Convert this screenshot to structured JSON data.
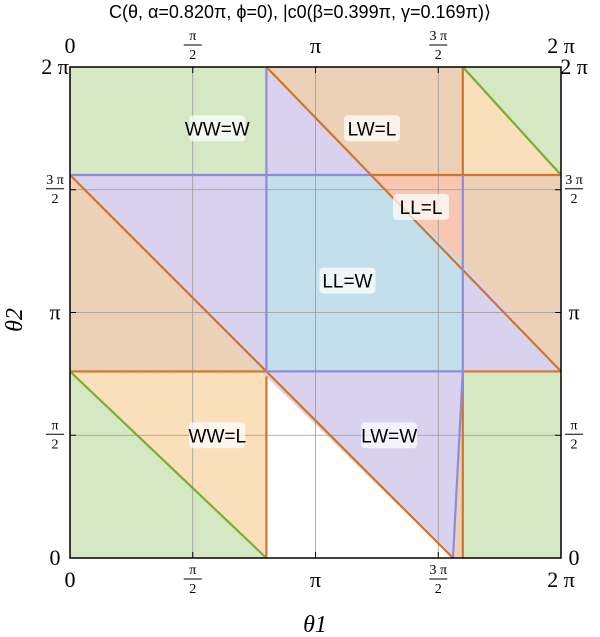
{
  "chart_data": {
    "type": "region-map",
    "title": "C(θ, α=0.820π, ϕ=0), |c0(β=0.399π, γ=0.169π)⟩",
    "xlabel": "θ1",
    "ylabel": "θ2",
    "xlim": [
      0,
      2
    ],
    "ylim": [
      0,
      2
    ],
    "units": "π",
    "ticks": [
      {
        "value": 0,
        "label": "0"
      },
      {
        "value": 0.5,
        "label": "π/2"
      },
      {
        "value": 1,
        "label": "π"
      },
      {
        "value": 1.5,
        "label": "3π/2"
      },
      {
        "value": 2,
        "label": "2π"
      }
    ],
    "grid": true,
    "region_colors": {
      "green": "#d5e8c4",
      "orange": "#edd1b7",
      "lightorange": "#f9dfba",
      "purple": "#d8d2ef",
      "blue": "#c4dfec",
      "red": "#f7c7b1"
    },
    "line_colors": {
      "orange": "#d0752a",
      "purple": "#8c8be0",
      "green": "#7dac36"
    },
    "regions": [
      {
        "name": "green-top-left",
        "color": "green",
        "points": [
          [
            0,
            1.5
          ],
          [
            0.8,
            1.5
          ],
          [
            0.8,
            2
          ],
          [
            0,
            2
          ]
        ]
      },
      {
        "name": "green-top-right",
        "color": "green",
        "points": [
          [
            1.6,
            2
          ],
          [
            2,
            2
          ],
          [
            2,
            1.56
          ]
        ]
      },
      {
        "name": "green-bottom-left",
        "color": "green",
        "points": [
          [
            0,
            0
          ],
          [
            0.8,
            0
          ],
          [
            0,
            0.76
          ]
        ]
      },
      {
        "name": "green-bottom-right",
        "color": "green",
        "points": [
          [
            1.6,
            0
          ],
          [
            2,
            0
          ],
          [
            2,
            0.76
          ],
          [
            1.6,
            0.76
          ]
        ]
      },
      {
        "name": "orange-top-mid",
        "color": "orange",
        "points": [
          [
            0.8,
            2
          ],
          [
            1.6,
            2
          ],
          [
            1.6,
            1.56
          ],
          [
            1.22,
            1.56
          ]
        ]
      },
      {
        "name": "orange-top-right",
        "color": "lightorange",
        "points": [
          [
            1.6,
            2
          ],
          [
            1.6,
            1.56
          ],
          [
            2,
            1.56
          ]
        ]
      },
      {
        "name": "purple-top",
        "color": "purple",
        "points": [
          [
            0.8,
            2
          ],
          [
            1.22,
            1.56
          ],
          [
            0.8,
            1.56
          ]
        ]
      },
      {
        "name": "orange-left",
        "color": "orange",
        "points": [
          [
            0,
            1.56
          ],
          [
            0,
            0.76
          ],
          [
            0.78,
            0.76
          ]
        ]
      },
      {
        "name": "purple-left",
        "color": "purple",
        "points": [
          [
            0,
            1.56
          ],
          [
            0.8,
            1.56
          ],
          [
            0.8,
            0.76
          ],
          [
            0.78,
            0.76
          ]
        ]
      },
      {
        "name": "red-top-right",
        "color": "red",
        "points": [
          [
            1.22,
            1.56
          ],
          [
            1.6,
            1.56
          ],
          [
            1.6,
            1.2
          ]
        ]
      },
      {
        "name": "orange-right",
        "color": "orange",
        "points": [
          [
            1.6,
            1.56
          ],
          [
            2,
            1.56
          ],
          [
            2,
            0.76
          ],
          [
            1.6,
            1.2
          ]
        ]
      },
      {
        "name": "purple-right",
        "color": "purple",
        "points": [
          [
            1.6,
            1.2
          ],
          [
            2,
            0.76
          ],
          [
            1.6,
            0.76
          ]
        ]
      },
      {
        "name": "blue-center",
        "color": "blue",
        "points": [
          [
            0.8,
            1.56
          ],
          [
            1.22,
            1.56
          ],
          [
            1.6,
            1.2
          ],
          [
            1.6,
            0.76
          ],
          [
            0.8,
            0.76
          ]
        ]
      },
      {
        "name": "lightorange-bottom-left",
        "color": "lightorange",
        "points": [
          [
            0,
            0.76
          ],
          [
            0.78,
            0.76
          ],
          [
            0.8,
            0.74
          ],
          [
            0.8,
            0
          ]
        ]
      },
      {
        "name": "orange-bottom-mid",
        "color": "orange",
        "points": [
          [
            0.8,
            0.74
          ],
          [
            0.78,
            0.76
          ],
          [
            1.6,
            0.76
          ],
          [
            1.6,
            0
          ],
          [
            1.56,
            0
          ]
        ]
      },
      {
        "name": "purple-bottom",
        "color": "purple",
        "points": [
          [
            0.8,
            0.76
          ],
          [
            1.6,
            0.76
          ],
          [
            1.56,
            0
          ],
          [
            0.8,
            0.74
          ]
        ]
      }
    ],
    "boundaries": [
      {
        "color": "orange",
        "points": [
          [
            0.8,
            2
          ],
          [
            2,
            0.76
          ]
        ]
      },
      {
        "color": "orange",
        "points": [
          [
            0,
            1.56
          ],
          [
            0.8,
            0.76
          ],
          [
            1.56,
            0
          ]
        ]
      },
      {
        "color": "orange",
        "points": [
          [
            0,
            0.76
          ],
          [
            2,
            0.76
          ]
        ]
      },
      {
        "color": "orange",
        "points": [
          [
            1.22,
            1.56
          ],
          [
            2,
            1.56
          ]
        ]
      },
      {
        "color": "orange",
        "points": [
          [
            1.6,
            2
          ],
          [
            1.6,
            1.56
          ]
        ]
      },
      {
        "color": "orange",
        "points": [
          [
            1.6,
            0.76
          ],
          [
            1.6,
            0
          ]
        ]
      },
      {
        "color": "orange",
        "points": [
          [
            0.8,
            0.74
          ],
          [
            0.8,
            0
          ]
        ]
      },
      {
        "color": "purple",
        "points": [
          [
            0.8,
            2
          ],
          [
            0.8,
            0.76
          ]
        ]
      },
      {
        "color": "purple",
        "points": [
          [
            0,
            1.56
          ],
          [
            1.22,
            1.56
          ]
        ]
      },
      {
        "color": "purple",
        "points": [
          [
            1.6,
            1.56
          ],
          [
            1.6,
            0.76
          ]
        ]
      },
      {
        "color": "purple",
        "points": [
          [
            0.8,
            0.76
          ],
          [
            1.6,
            0.76
          ]
        ]
      },
      {
        "color": "purple",
        "points": [
          [
            1.6,
            0.76
          ],
          [
            1.56,
            0
          ]
        ]
      },
      {
        "color": "green",
        "points": [
          [
            1.6,
            2
          ],
          [
            2,
            1.56
          ]
        ]
      },
      {
        "color": "green",
        "points": [
          [
            0,
            0.76
          ],
          [
            0.8,
            0
          ]
        ]
      }
    ],
    "labels": [
      {
        "text": "WW=W",
        "x": 0.6,
        "y": 1.75
      },
      {
        "text": "LW=L",
        "x": 1.23,
        "y": 1.75
      },
      {
        "text": "LL=L",
        "x": 1.43,
        "y": 1.43
      },
      {
        "text": "LL=W",
        "x": 1.13,
        "y": 1.13
      },
      {
        "text": "WW=L",
        "x": 0.6,
        "y": 0.5
      },
      {
        "text": "LW=W",
        "x": 1.3,
        "y": 0.5
      }
    ]
  }
}
